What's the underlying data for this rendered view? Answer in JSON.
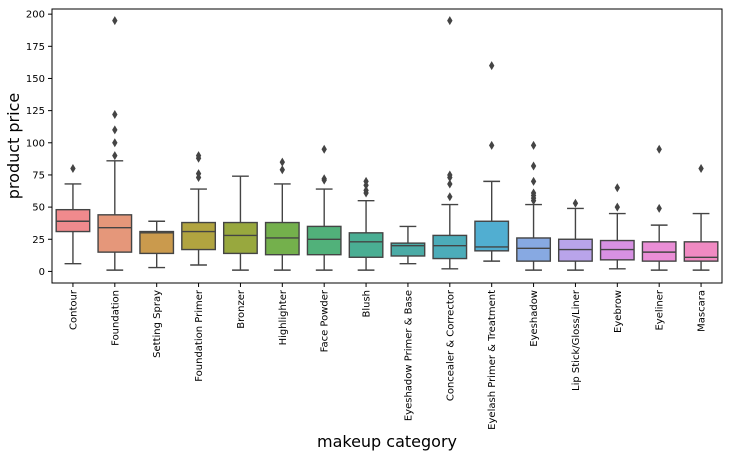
{
  "chart_data": {
    "type": "box",
    "xlabel": "makeup category",
    "ylabel": "product price",
    "ylim": [
      -9,
      204
    ],
    "yticks": [
      0,
      25,
      50,
      75,
      100,
      125,
      150,
      175,
      200
    ],
    "grid": false,
    "categories": [
      {
        "name": "Contour",
        "color": "#f08a8d",
        "whisker_low": 6,
        "q1": 31,
        "median": 39,
        "q3": 48,
        "whisker_high": 68,
        "outliers": [
          80
        ]
      },
      {
        "name": "Foundation",
        "color": "#e5977a",
        "whisker_low": 1,
        "q1": 15,
        "median": 34,
        "q3": 44,
        "whisker_high": 86,
        "outliers": [
          90,
          100,
          110,
          122,
          195
        ]
      },
      {
        "name": "Setting Spray",
        "color": "#ca9a4d",
        "whisker_low": 3,
        "q1": 14,
        "median": 30,
        "q3": 31,
        "whisker_high": 39,
        "outliers": []
      },
      {
        "name": "Foundation Primer",
        "color": "#b1a440",
        "whisker_low": 5,
        "q1": 17,
        "median": 31,
        "q3": 38,
        "whisker_high": 64,
        "outliers": [
          73,
          76,
          88,
          90
        ]
      },
      {
        "name": "Bronzer",
        "color": "#98a83e",
        "whisker_low": 1,
        "q1": 14,
        "median": 28,
        "q3": 38,
        "whisker_high": 74,
        "outliers": []
      },
      {
        "name": "Highlighter",
        "color": "#74b04c",
        "whisker_low": 1,
        "q1": 13,
        "median": 26,
        "q3": 38,
        "whisker_high": 68,
        "outliers": [
          79,
          85
        ]
      },
      {
        "name": "Face Powder",
        "color": "#51b17a",
        "whisker_low": 1,
        "q1": 13,
        "median": 25,
        "q3": 35,
        "whisker_high": 64,
        "outliers": [
          71,
          72,
          95
        ]
      },
      {
        "name": "Blush",
        "color": "#4aae93",
        "whisker_low": 1,
        "q1": 11,
        "median": 23,
        "q3": 30,
        "whisker_high": 55,
        "outliers": [
          61,
          63,
          67,
          70
        ]
      },
      {
        "name": "Eyeshadow Primer & Base",
        "color": "#4baba6",
        "whisker_low": 6,
        "q1": 12,
        "median": 20,
        "q3": 22,
        "whisker_high": 35,
        "outliers": []
      },
      {
        "name": "Concealer & Corrector",
        "color": "#4cacb9",
        "whisker_low": 2,
        "q1": 10,
        "median": 20,
        "q3": 28,
        "whisker_high": 52,
        "outliers": [
          58,
          68,
          73,
          75,
          195
        ]
      },
      {
        "name": "Eyelash Primer & Treatment",
        "color": "#51aed1",
        "whisker_low": 8,
        "q1": 16,
        "median": 19,
        "q3": 39,
        "whisker_high": 70,
        "outliers": [
          98,
          160
        ]
      },
      {
        "name": "Eyeshadow",
        "color": "#87a9e2",
        "whisker_low": 1,
        "q1": 8,
        "median": 18,
        "q3": 26,
        "whisker_high": 52,
        "outliers": [
          55,
          57,
          59,
          61,
          70,
          82,
          98
        ]
      },
      {
        "name": "Lip Stick/Gloss/Liner",
        "color": "#b9a4ea",
        "whisker_low": 1,
        "q1": 8,
        "median": 17,
        "q3": 25,
        "whisker_high": 49,
        "outliers": [
          53
        ]
      },
      {
        "name": "Eyebrow",
        "color": "#d791e3",
        "whisker_low": 2,
        "q1": 9,
        "median": 17,
        "q3": 24,
        "whisker_high": 45,
        "outliers": [
          50,
          65
        ]
      },
      {
        "name": "Eyeliner",
        "color": "#ea8ed6",
        "whisker_low": 1,
        "q1": 8,
        "median": 15,
        "q3": 23,
        "whisker_high": 36,
        "outliers": [
          49,
          95
        ]
      },
      {
        "name": "Mascara",
        "color": "#f08ac2",
        "whisker_low": 1,
        "q1": 8,
        "median": 11,
        "q3": 23,
        "whisker_high": 45,
        "outliers": [
          80
        ]
      }
    ]
  }
}
